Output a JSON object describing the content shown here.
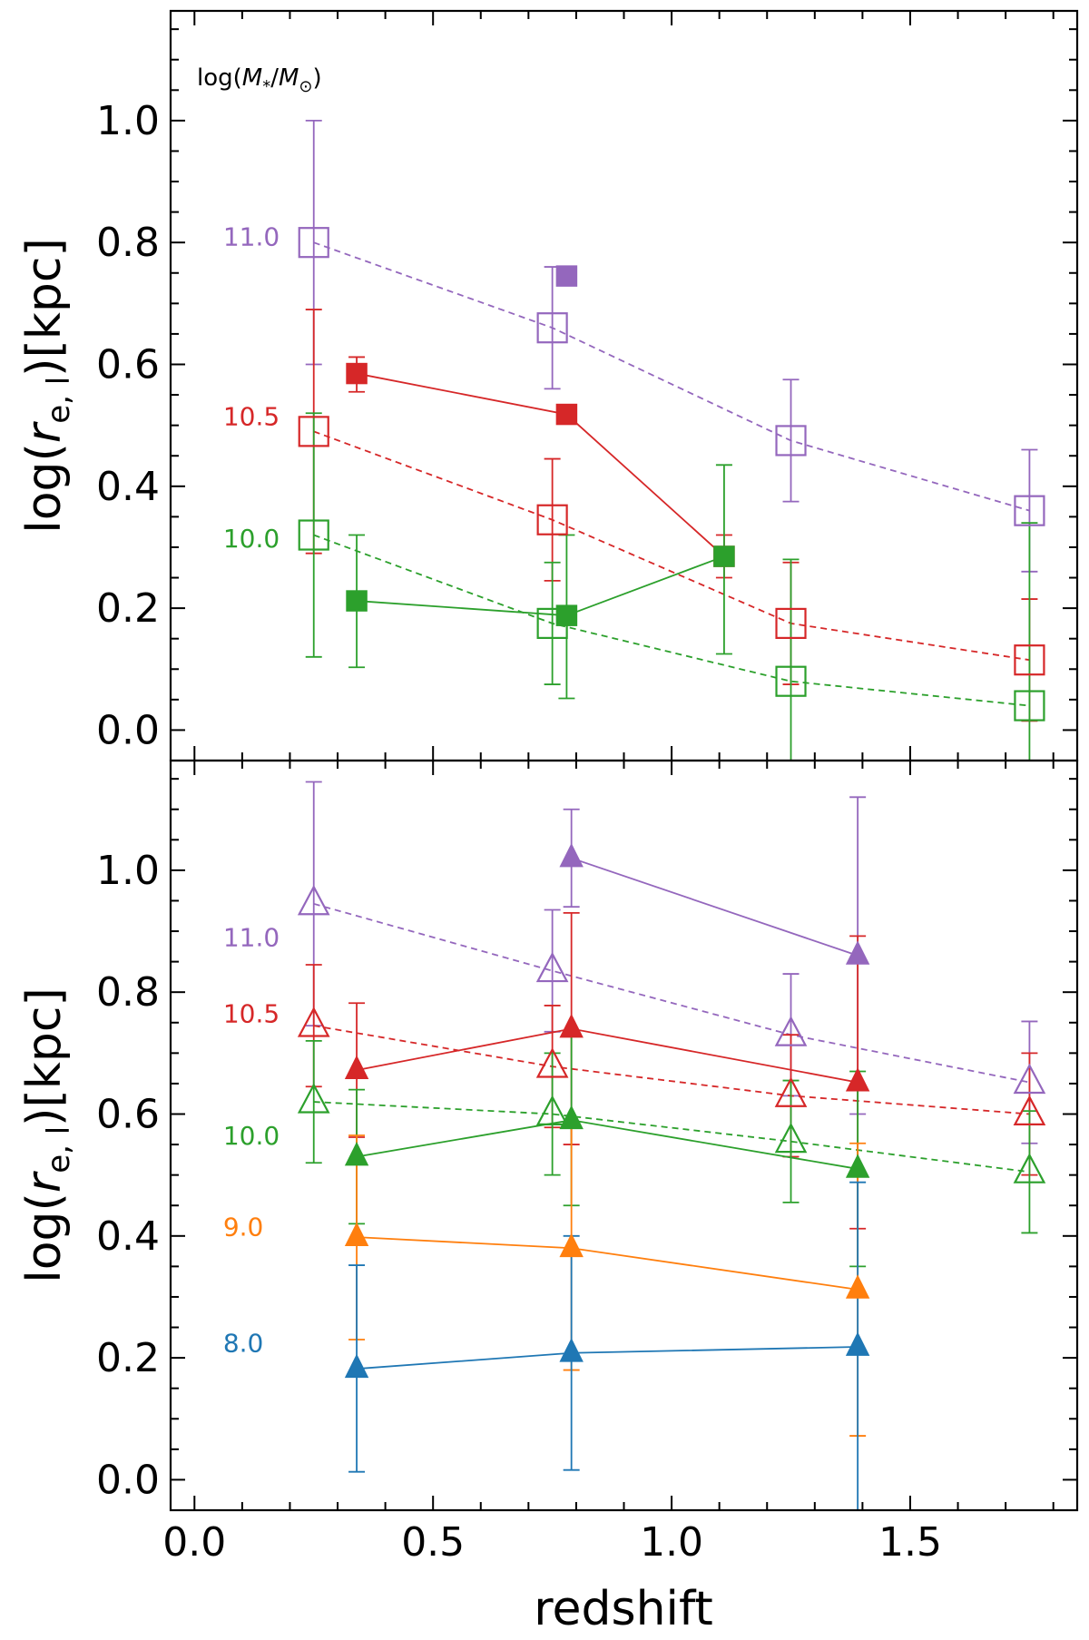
{
  "chart_data": [
    {
      "type": "scatter",
      "panel": "top",
      "title": "",
      "xlabel": "redshift",
      "ylabel": "log(r_e,l)[kpc]",
      "ylabel_parts": {
        "pre": "log(",
        "var": "r",
        "sub": "e, l",
        "post": ")[kpc]"
      },
      "xlim": [
        -0.05,
        1.85
      ],
      "ylim": [
        -0.05,
        1.18
      ],
      "xticks": [
        0.0,
        0.5,
        1.0,
        1.5
      ],
      "yticks": [
        0.0,
        0.2,
        0.4,
        0.6,
        0.8,
        1.0
      ],
      "ytick_labels": [
        "0.0",
        "0.2",
        "0.4",
        "0.6",
        "0.8",
        "1.0"
      ],
      "grid": false,
      "marker": "square",
      "header_label": {
        "text": "log(M*/M⊙)",
        "pre": "log(",
        "m1": "M",
        "m1sub": "*",
        "slash": "/",
        "m2": "M",
        "m2sub": "⊙",
        "post": ")",
        "x": 0.02,
        "y": 1.07
      },
      "mass_labels": [
        {
          "text": "11.0",
          "color": "#9467bd",
          "y": 0.81
        },
        {
          "text": "10.5",
          "color": "#d62728",
          "y": 0.515
        },
        {
          "text": "10.0",
          "color": "#2ca02c",
          "y": 0.315
        }
      ],
      "series": [
        {
          "name": "11.0",
          "style": "open",
          "line": "dashed",
          "color": "#9467bd",
          "x": [
            0.25,
            0.75,
            1.25,
            1.75
          ],
          "y": [
            0.8,
            0.66,
            0.475,
            0.36
          ],
          "ylo": [
            0.6,
            0.56,
            0.375,
            0.26
          ],
          "yhi": [
            1.0,
            0.76,
            0.575,
            0.46
          ]
        },
        {
          "name": "11.0",
          "style": "filled",
          "line": "none",
          "color": "#9467bd",
          "x": [
            0.78
          ],
          "y": [
            0.745
          ],
          "ylo": [
            0.745
          ],
          "yhi": [
            0.745
          ]
        },
        {
          "name": "10.5",
          "style": "open",
          "line": "dashed",
          "color": "#d62728",
          "x": [
            0.25,
            0.75,
            1.25,
            1.75
          ],
          "y": [
            0.49,
            0.345,
            0.175,
            0.115
          ],
          "ylo": [
            0.29,
            0.245,
            0.075,
            0.015
          ],
          "yhi": [
            0.69,
            0.445,
            0.275,
            0.215
          ]
        },
        {
          "name": "10.5",
          "style": "filled",
          "line": "solid",
          "color": "#d62728",
          "x": [
            0.34,
            0.78,
            1.11
          ],
          "y": [
            0.585,
            0.518,
            0.285
          ],
          "ylo": [
            0.555,
            0.518,
            0.25
          ],
          "yhi": [
            0.612,
            0.518,
            0.32
          ]
        },
        {
          "name": "10.0",
          "style": "open",
          "line": "dashed",
          "color": "#2ca02c",
          "x": [
            0.25,
            0.75,
            1.25,
            1.75
          ],
          "y": [
            0.32,
            0.175,
            0.08,
            0.04
          ],
          "ylo": [
            0.12,
            0.075,
            -0.07,
            -0.06
          ],
          "yhi": [
            0.52,
            0.275,
            0.28,
            0.34
          ]
        },
        {
          "name": "10.0",
          "style": "filled",
          "line": "solid",
          "color": "#2ca02c",
          "x": [
            0.34,
            0.78,
            1.11
          ],
          "y": [
            0.212,
            0.188,
            0.285
          ],
          "ylo": [
            0.103,
            0.052,
            0.125
          ],
          "yhi": [
            0.32,
            0.32,
            0.435
          ]
        }
      ]
    },
    {
      "type": "scatter",
      "panel": "bottom",
      "title": "",
      "xlabel": "redshift",
      "ylabel": "log(r_e,l)[kpc]",
      "ylabel_parts": {
        "pre": "log(",
        "var": "r",
        "sub": "e, l",
        "post": ")[kpc]"
      },
      "xlim": [
        -0.05,
        1.85
      ],
      "ylim": [
        -0.05,
        1.18
      ],
      "xticks": [
        0.0,
        0.5,
        1.0,
        1.5
      ],
      "xtick_labels": [
        "0.0",
        "0.5",
        "1.0",
        "1.5"
      ],
      "yticks": [
        0.0,
        0.2,
        0.4,
        0.6,
        0.8,
        1.0
      ],
      "ytick_labels": [
        "0.0",
        "0.2",
        "0.4",
        "0.6",
        "0.8",
        "1.0"
      ],
      "grid": false,
      "marker": "triangle",
      "mass_labels": [
        {
          "text": "11.0",
          "color": "#9467bd",
          "y": 0.89
        },
        {
          "text": "10.5",
          "color": "#d62728",
          "y": 0.765
        },
        {
          "text": "10.0",
          "color": "#2ca02c",
          "y": 0.565
        },
        {
          "text": "9.0",
          "color": "#ff7f0e",
          "y": 0.415
        },
        {
          "text": "8.0",
          "color": "#1f77b4",
          "y": 0.225
        }
      ],
      "series": [
        {
          "name": "11.0",
          "style": "open",
          "line": "dashed",
          "color": "#9467bd",
          "x": [
            0.25,
            0.75,
            1.25,
            1.75
          ],
          "y": [
            0.945,
            0.835,
            0.73,
            0.652
          ],
          "ylo": [
            0.745,
            0.735,
            0.63,
            0.552
          ],
          "yhi": [
            1.145,
            0.935,
            0.83,
            0.752
          ]
        },
        {
          "name": "11.0",
          "style": "filled",
          "line": "solid",
          "color": "#9467bd",
          "x": [
            0.79,
            1.39
          ],
          "y": [
            1.02,
            0.86
          ],
          "ylo": [
            0.94,
            0.6
          ],
          "yhi": [
            1.1,
            1.12
          ]
        },
        {
          "name": "10.5",
          "style": "open",
          "line": "dashed",
          "color": "#d62728",
          "x": [
            0.25,
            0.75,
            1.25,
            1.75
          ],
          "y": [
            0.745,
            0.678,
            0.63,
            0.6
          ],
          "ylo": [
            0.645,
            0.578,
            0.53,
            0.5
          ],
          "yhi": [
            0.845,
            0.778,
            0.73,
            0.7
          ]
        },
        {
          "name": "10.5",
          "style": "filled",
          "line": "solid",
          "color": "#d62728",
          "x": [
            0.34,
            0.79,
            1.39
          ],
          "y": [
            0.672,
            0.74,
            0.652
          ],
          "ylo": [
            0.562,
            0.55,
            0.412
          ],
          "yhi": [
            0.782,
            0.93,
            0.892
          ]
        },
        {
          "name": "10.0",
          "style": "open",
          "line": "dashed",
          "color": "#2ca02c",
          "x": [
            0.25,
            0.75,
            1.25,
            1.75
          ],
          "y": [
            0.62,
            0.6,
            0.555,
            0.505
          ],
          "ylo": [
            0.52,
            0.5,
            0.455,
            0.405
          ],
          "yhi": [
            0.72,
            0.7,
            0.655,
            0.605
          ]
        },
        {
          "name": "10.0",
          "style": "filled",
          "line": "solid",
          "color": "#2ca02c",
          "x": [
            0.34,
            0.79,
            1.39
          ],
          "y": [
            0.53,
            0.59,
            0.51
          ],
          "ylo": [
            0.42,
            0.45,
            0.35
          ],
          "yhi": [
            0.64,
            0.73,
            0.67
          ]
        },
        {
          "name": "9.0",
          "style": "filled",
          "line": "solid",
          "color": "#ff7f0e",
          "x": [
            0.34,
            0.79,
            1.39
          ],
          "y": [
            0.398,
            0.38,
            0.312
          ],
          "ylo": [
            0.23,
            0.18,
            0.072
          ],
          "yhi": [
            0.565,
            0.58,
            0.552
          ]
        },
        {
          "name": "8.0",
          "style": "filled",
          "line": "solid",
          "color": "#1f77b4",
          "x": [
            0.34,
            0.79,
            1.39
          ],
          "y": [
            0.182,
            0.208,
            0.218
          ],
          "ylo": [
            0.013,
            0.016,
            -0.052
          ],
          "yhi": [
            0.352,
            0.4,
            0.488
          ]
        }
      ]
    }
  ]
}
